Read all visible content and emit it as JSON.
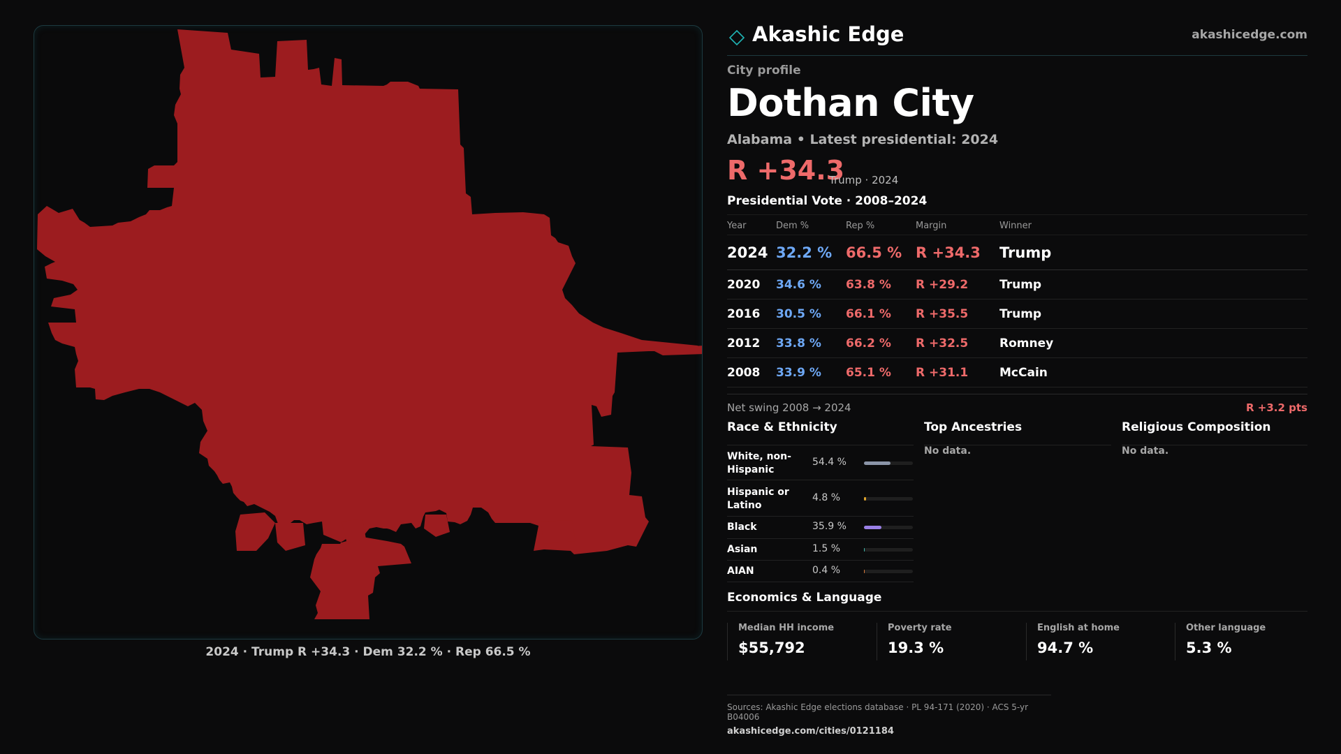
{
  "brand": {
    "name": "Akashic Edge",
    "url": "akashicedge.com"
  },
  "header": {
    "kicker": "City profile",
    "title": "Dothan City",
    "subtitle": "Alabama • Latest presidential: 2024",
    "margin": "R +34.3",
    "margin_note": "Trump · 2024"
  },
  "map": {
    "caption": "2024 · Trump R +34.3 · Dem 32.2 % · Rep 66.5 %",
    "fill_color": "#9c1c1f"
  },
  "vote": {
    "title": "Presidential Vote · 2008–2024",
    "headers": {
      "year": "Year",
      "dem": "Dem %",
      "rep": "Rep %",
      "margin": "Margin",
      "winner": "Winner"
    },
    "rows": [
      {
        "year": "2024",
        "dem": "32.2 %",
        "rep": "66.5 %",
        "margin": "R +34.3",
        "winner": "Trump"
      },
      {
        "year": "2020",
        "dem": "34.6 %",
        "rep": "63.8 %",
        "margin": "R +29.2",
        "winner": "Trump"
      },
      {
        "year": "2016",
        "dem": "30.5 %",
        "rep": "66.1 %",
        "margin": "R +35.5",
        "winner": "Trump"
      },
      {
        "year": "2012",
        "dem": "33.8 %",
        "rep": "66.2 %",
        "margin": "R +32.5",
        "winner": "Romney"
      },
      {
        "year": "2008",
        "dem": "33.9 %",
        "rep": "65.1 %",
        "margin": "R +31.1",
        "winner": "McCain"
      }
    ],
    "swing_label": "Net swing 2008 → 2024",
    "swing_value": "R +3.2 pts"
  },
  "race": {
    "title": "Race & Ethnicity",
    "items": [
      {
        "label": "White, non-Hispanic",
        "value": "54.4 %",
        "pct": 54.4,
        "color": "#8b95a8"
      },
      {
        "label": "Hispanic or Latino",
        "value": "4.8 %",
        "pct": 4.8,
        "color": "#e0a52c"
      },
      {
        "label": "Black",
        "value": "35.9 %",
        "pct": 35.9,
        "color": "#9a80e6"
      },
      {
        "label": "Asian",
        "value": "1.5 %",
        "pct": 1.5,
        "color": "#3fb6a8"
      },
      {
        "label": "AIAN",
        "value": "0.4 %",
        "pct": 0.4,
        "color": "#d97a3a"
      }
    ]
  },
  "ancestries": {
    "title": "Top Ancestries",
    "empty": "No data."
  },
  "religion": {
    "title": "Religious Composition",
    "empty": "No data."
  },
  "economics": {
    "title": "Economics & Language",
    "cards": [
      {
        "label": "Median HH income",
        "value": "$55,792"
      },
      {
        "label": "Poverty rate",
        "value": "19.3 %"
      },
      {
        "label": "English at home",
        "value": "94.7 %"
      },
      {
        "label": "Other language",
        "value": "5.3 %"
      }
    ]
  },
  "footer": {
    "sources": "Sources: Akashic Edge elections database · PL 94-171 (2020) · ACS 5-yr B04006",
    "url": "akashicedge.com/cities/0121184"
  }
}
